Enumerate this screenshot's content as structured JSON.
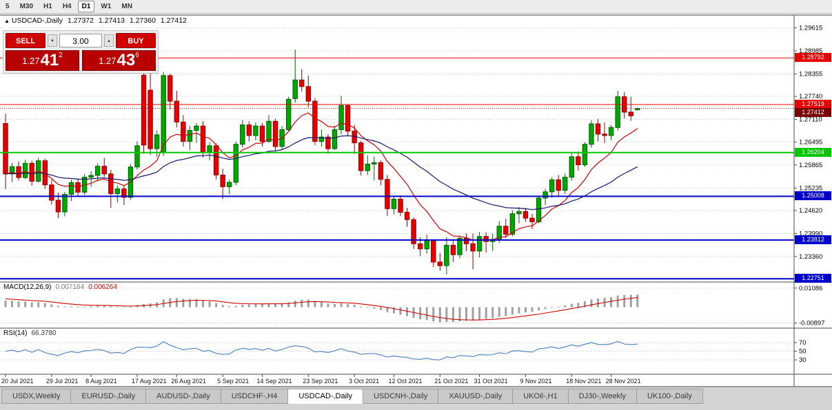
{
  "toolbar": {
    "timeframes": [
      {
        "label": "5",
        "active": false
      },
      {
        "label": "M30",
        "active": false
      },
      {
        "label": "H1",
        "active": false
      },
      {
        "label": "H4",
        "active": false
      },
      {
        "label": "D1",
        "active": true
      },
      {
        "label": "W1",
        "active": false
      },
      {
        "label": "MN",
        "active": false
      }
    ]
  },
  "chart_header": {
    "icon": "▲",
    "symbol": "USDCAD-,Daily",
    "open": "1.27372",
    "high": "1.27413",
    "low": "1.27360",
    "close": "1.27412"
  },
  "trade_panel": {
    "sell_label": "SELL",
    "buy_label": "BUY",
    "volume": "3.00",
    "spin_down": "▼",
    "spin_up": "▲",
    "sell_price": {
      "prefix": "1.27",
      "main": "41",
      "sup": "2"
    },
    "buy_price": {
      "prefix": "1.27",
      "main": "43",
      "sup": "6"
    }
  },
  "chart_data": {
    "type": "candlestick",
    "symbol": "USDCAD",
    "period": "Daily",
    "y_axis_labels": [
      "1.29615",
      "1.28985",
      "1.28355",
      "1.27740",
      "1.27110",
      "1.26495",
      "1.25865",
      "1.25235",
      "1.24620",
      "1.23990",
      "1.23360"
    ],
    "x_axis_labels": [
      "20 Jul 2021",
      "29 Jul 2021",
      "8 Aug 2021",
      "17 Aug 2021",
      "26 Aug 2021",
      "5 Sep 2021",
      "14 Sep 2021",
      "23 Sep 2021",
      "3 Oct 2021",
      "12 Oct 2021",
      "21 Oct 2021",
      "31 Oct 2021",
      "9 Nov 2021",
      "18 Nov 2021",
      "28 Nov 2021"
    ],
    "x_label_indices": [
      0,
      7,
      13,
      20,
      26,
      33,
      39,
      46,
      53,
      59,
      66,
      72,
      79,
      86,
      92
    ],
    "price_range": {
      "max": 1.2985,
      "min": 1.227
    },
    "bull_color": "#00a800",
    "bear_color": "#e60000",
    "candles": [
      [
        1.27,
        1.2727,
        1.252,
        1.2562
      ],
      [
        1.2562,
        1.2592,
        1.254,
        1.2582
      ],
      [
        1.2582,
        1.2596,
        1.2544,
        1.2552
      ],
      [
        1.2552,
        1.2601,
        1.2548,
        1.2591
      ],
      [
        1.2591,
        1.2598,
        1.253,
        1.2542
      ],
      [
        1.2542,
        1.2606,
        1.2538,
        1.2598
      ],
      [
        1.2598,
        1.2604,
        1.2521,
        1.2532
      ],
      [
        1.2532,
        1.2546,
        1.2478,
        1.249
      ],
      [
        1.249,
        1.2511,
        1.2441,
        1.2458
      ],
      [
        1.2458,
        1.2513,
        1.2446,
        1.2506
      ],
      [
        1.2506,
        1.2546,
        1.2488,
        1.2538
      ],
      [
        1.2538,
        1.2549,
        1.2499,
        1.2512
      ],
      [
        1.2512,
        1.2561,
        1.2504,
        1.2553
      ],
      [
        1.2553,
        1.2569,
        1.2527,
        1.2558
      ],
      [
        1.2558,
        1.2591,
        1.2541,
        1.2583
      ],
      [
        1.2583,
        1.2606,
        1.2554,
        1.2562
      ],
      [
        1.2562,
        1.2573,
        1.2469,
        1.2508
      ],
      [
        1.2508,
        1.2531,
        1.2484,
        1.2521
      ],
      [
        1.2521,
        1.2529,
        1.2477,
        1.2498
      ],
      [
        1.2498,
        1.2589,
        1.2491,
        1.2581
      ],
      [
        1.2581,
        1.2651,
        1.2574,
        1.2639
      ],
      [
        1.2832,
        1.2839,
        1.2617,
        1.2641
      ],
      [
        1.2791,
        1.2836,
        1.2614,
        1.2631
      ],
      [
        1.2631,
        1.2681,
        1.2609,
        1.2669
      ],
      [
        1.2621,
        1.2841,
        1.2611,
        1.2831
      ],
      [
        1.2831,
        1.2836,
        1.2738,
        1.2761
      ],
      [
        1.2761,
        1.2789,
        1.2689,
        1.2704
      ],
      [
        1.2704,
        1.2723,
        1.2637,
        1.2651
      ],
      [
        1.2651,
        1.2693,
        1.2627,
        1.2681
      ],
      [
        1.2681,
        1.2701,
        1.2647,
        1.2693
      ],
      [
        1.2693,
        1.2706,
        1.2607,
        1.2621
      ],
      [
        1.2621,
        1.2649,
        1.2599,
        1.2639
      ],
      [
        1.2639,
        1.2646,
        1.2547,
        1.2559
      ],
      [
        1.2559,
        1.2576,
        1.2494,
        1.2527
      ],
      [
        1.2527,
        1.2546,
        1.2507,
        1.2539
      ],
      [
        1.2539,
        1.2651,
        1.2531,
        1.2643
      ],
      [
        1.2643,
        1.2709,
        1.2634,
        1.2696
      ],
      [
        1.2696,
        1.2706,
        1.2651,
        1.2667
      ],
      [
        1.2667,
        1.2703,
        1.2654,
        1.2693
      ],
      [
        1.2693,
        1.2701,
        1.2637,
        1.2651
      ],
      [
        1.2651,
        1.2723,
        1.2647,
        1.2706
      ],
      [
        1.2706,
        1.2713,
        1.2624,
        1.2637
      ],
      [
        1.2637,
        1.2693,
        1.2629,
        1.2683
      ],
      [
        1.2683,
        1.2773,
        1.2677,
        1.2766
      ],
      [
        1.2768,
        1.2902,
        1.2757,
        1.2819
      ],
      [
        1.2819,
        1.2849,
        1.2787,
        1.2801
      ],
      [
        1.2801,
        1.2831,
        1.2744,
        1.2761
      ],
      [
        1.2761,
        1.2769,
        1.2641,
        1.2651
      ],
      [
        1.2651,
        1.2683,
        1.2637,
        1.2663
      ],
      [
        1.2663,
        1.2671,
        1.2617,
        1.2631
      ],
      [
        1.2631,
        1.2693,
        1.2627,
        1.2683
      ],
      [
        1.2683,
        1.2776,
        1.2671,
        1.2749
      ],
      [
        1.2749,
        1.2753,
        1.2667,
        1.2679
      ],
      [
        1.2679,
        1.2696,
        1.2617,
        1.2647
      ],
      [
        1.2647,
        1.2653,
        1.2557,
        1.2571
      ],
      [
        1.2571,
        1.2613,
        1.2559,
        1.2589
      ],
      [
        1.2589,
        1.2609,
        1.2544,
        1.2593
      ],
      [
        1.2593,
        1.2599,
        1.2531,
        1.2547
      ],
      [
        1.2547,
        1.2559,
        1.2447,
        1.2467
      ],
      [
        1.2467,
        1.2503,
        1.2451,
        1.2493
      ],
      [
        1.2493,
        1.2503,
        1.2447,
        1.2457
      ],
      [
        1.2457,
        1.2469,
        1.2417,
        1.2437
      ],
      [
        1.2437,
        1.2443,
        1.2357,
        1.2371
      ],
      [
        1.2371,
        1.2389,
        1.2337,
        1.2357
      ],
      [
        1.2357,
        1.2396,
        1.2344,
        1.2379
      ],
      [
        1.2379,
        1.2383,
        1.2307,
        1.2321
      ],
      [
        1.2321,
        1.2346,
        1.2297,
        1.2311
      ],
      [
        1.2311,
        1.2389,
        1.2287,
        1.2367
      ],
      [
        1.2367,
        1.2379,
        1.2321,
        1.2341
      ],
      [
        1.2341,
        1.2393,
        1.2331,
        1.2386
      ],
      [
        1.2386,
        1.2399,
        1.2351,
        1.2371
      ],
      [
        1.2371,
        1.2399,
        1.2301,
        1.2351
      ],
      [
        1.2351,
        1.2403,
        1.2334,
        1.2391
      ],
      [
        1.2391,
        1.2403,
        1.2347,
        1.2377
      ],
      [
        1.2377,
        1.2399,
        1.2351,
        1.2383
      ],
      [
        1.2383,
        1.2433,
        1.2374,
        1.2419
      ],
      [
        1.2419,
        1.2439,
        1.2387,
        1.2397
      ],
      [
        1.2397,
        1.2463,
        1.2391,
        1.2453
      ],
      [
        1.2453,
        1.2471,
        1.2427,
        1.2459
      ],
      [
        1.2459,
        1.2469,
        1.2431,
        1.2441
      ],
      [
        1.2441,
        1.2453,
        1.2411,
        1.2431
      ],
      [
        1.2431,
        1.2503,
        1.2427,
        1.2496
      ],
      [
        1.2496,
        1.2521,
        1.2477,
        1.2513
      ],
      [
        1.2513,
        1.2553,
        1.2497,
        1.2546
      ],
      [
        1.2546,
        1.2559,
        1.2501,
        1.2517
      ],
      [
        1.2517,
        1.2563,
        1.2507,
        1.2553
      ],
      [
        1.2553,
        1.2619,
        1.2544,
        1.2609
      ],
      [
        1.2609,
        1.2623,
        1.2571,
        1.2587
      ],
      [
        1.2587,
        1.2649,
        1.2581,
        1.2643
      ],
      [
        1.2643,
        1.2709,
        1.2634,
        1.2699
      ],
      [
        1.2699,
        1.2713,
        1.2651,
        1.2671
      ],
      [
        1.2671,
        1.2703,
        1.2647,
        1.2667
      ],
      [
        1.2667,
        1.2696,
        1.2654,
        1.2689
      ],
      [
        1.2689,
        1.2789,
        1.2681,
        1.2773
      ],
      [
        1.2773,
        1.2786,
        1.2714,
        1.2731
      ],
      [
        1.2731,
        1.2773,
        1.2707,
        1.2721
      ],
      [
        1.27372,
        1.27413,
        1.2736,
        1.27412
      ]
    ],
    "moving_averages": [
      {
        "name": "fast-ma",
        "period": 10,
        "color": "#cc0000"
      },
      {
        "name": "slow-ma",
        "period": 34,
        "color": "#16166c"
      }
    ],
    "levels": [
      {
        "value": 1.28792,
        "label": "1.28792",
        "color": "#e80000",
        "width": 1
      },
      {
        "value": 1.27519,
        "label": "1.27519",
        "color": "#e80000",
        "width": 1
      },
      {
        "value": 1.26204,
        "label": "1.26204",
        "color": "#00c800",
        "width": 2
      },
      {
        "value": 1.25008,
        "label": "1.25008",
        "color": "#0000cc",
        "width": 2
      },
      {
        "value": 1.23812,
        "label": "1.23812",
        "color": "#0000cc",
        "width": 2
      },
      {
        "value": 1.22751,
        "label": "1.22751",
        "color": "#0000cc",
        "width": 2
      }
    ],
    "current_price": {
      "value": 1.27412,
      "label": "1.27412",
      "color": "#7b0000"
    },
    "indicators": {
      "macd": {
        "name": "MACD(12,26,9)",
        "main_value": "0.007164",
        "signal_value": "0.006264",
        "fast": 12,
        "slow": 26,
        "signal": 9,
        "histogram_color": "#a0a0a0",
        "signal_color": "#cc0000",
        "axis_labels": [
          {
            "value": 0.01086,
            "label": "0.01086"
          },
          {
            "value": -0.00897,
            "label": "-0.00897"
          }
        ],
        "range": {
          "max": 0.0135,
          "min": -0.0115
        }
      },
      "rsi": {
        "name": "RSI(14)",
        "value": "66.3780",
        "period": 14,
        "color": "#4a7ebb",
        "levels": [
          {
            "value": 70,
            "label": "70"
          },
          {
            "value": 50,
            "label": "50"
          },
          {
            "value": 30,
            "label": "30"
          }
        ],
        "range": {
          "max": 100,
          "min": 0
        }
      }
    }
  },
  "tabs": [
    {
      "label": "USDX,Weekly",
      "active": false
    },
    {
      "label": "EURUSD-,Daily",
      "active": false
    },
    {
      "label": "AUDUSD-,Daily",
      "active": false
    },
    {
      "label": "USDCHF-,H4",
      "active": false
    },
    {
      "label": "USDCAD-,Daily",
      "active": true
    },
    {
      "label": "USDCNH-,Daily",
      "active": false
    },
    {
      "label": "XAUUSD-,Daily",
      "active": false
    },
    {
      "label": "UKOil-,H1",
      "active": false
    },
    {
      "label": "DJ30-,Weekly",
      "active": false
    },
    {
      "label": "UK100-,Daily",
      "active": false
    }
  ]
}
